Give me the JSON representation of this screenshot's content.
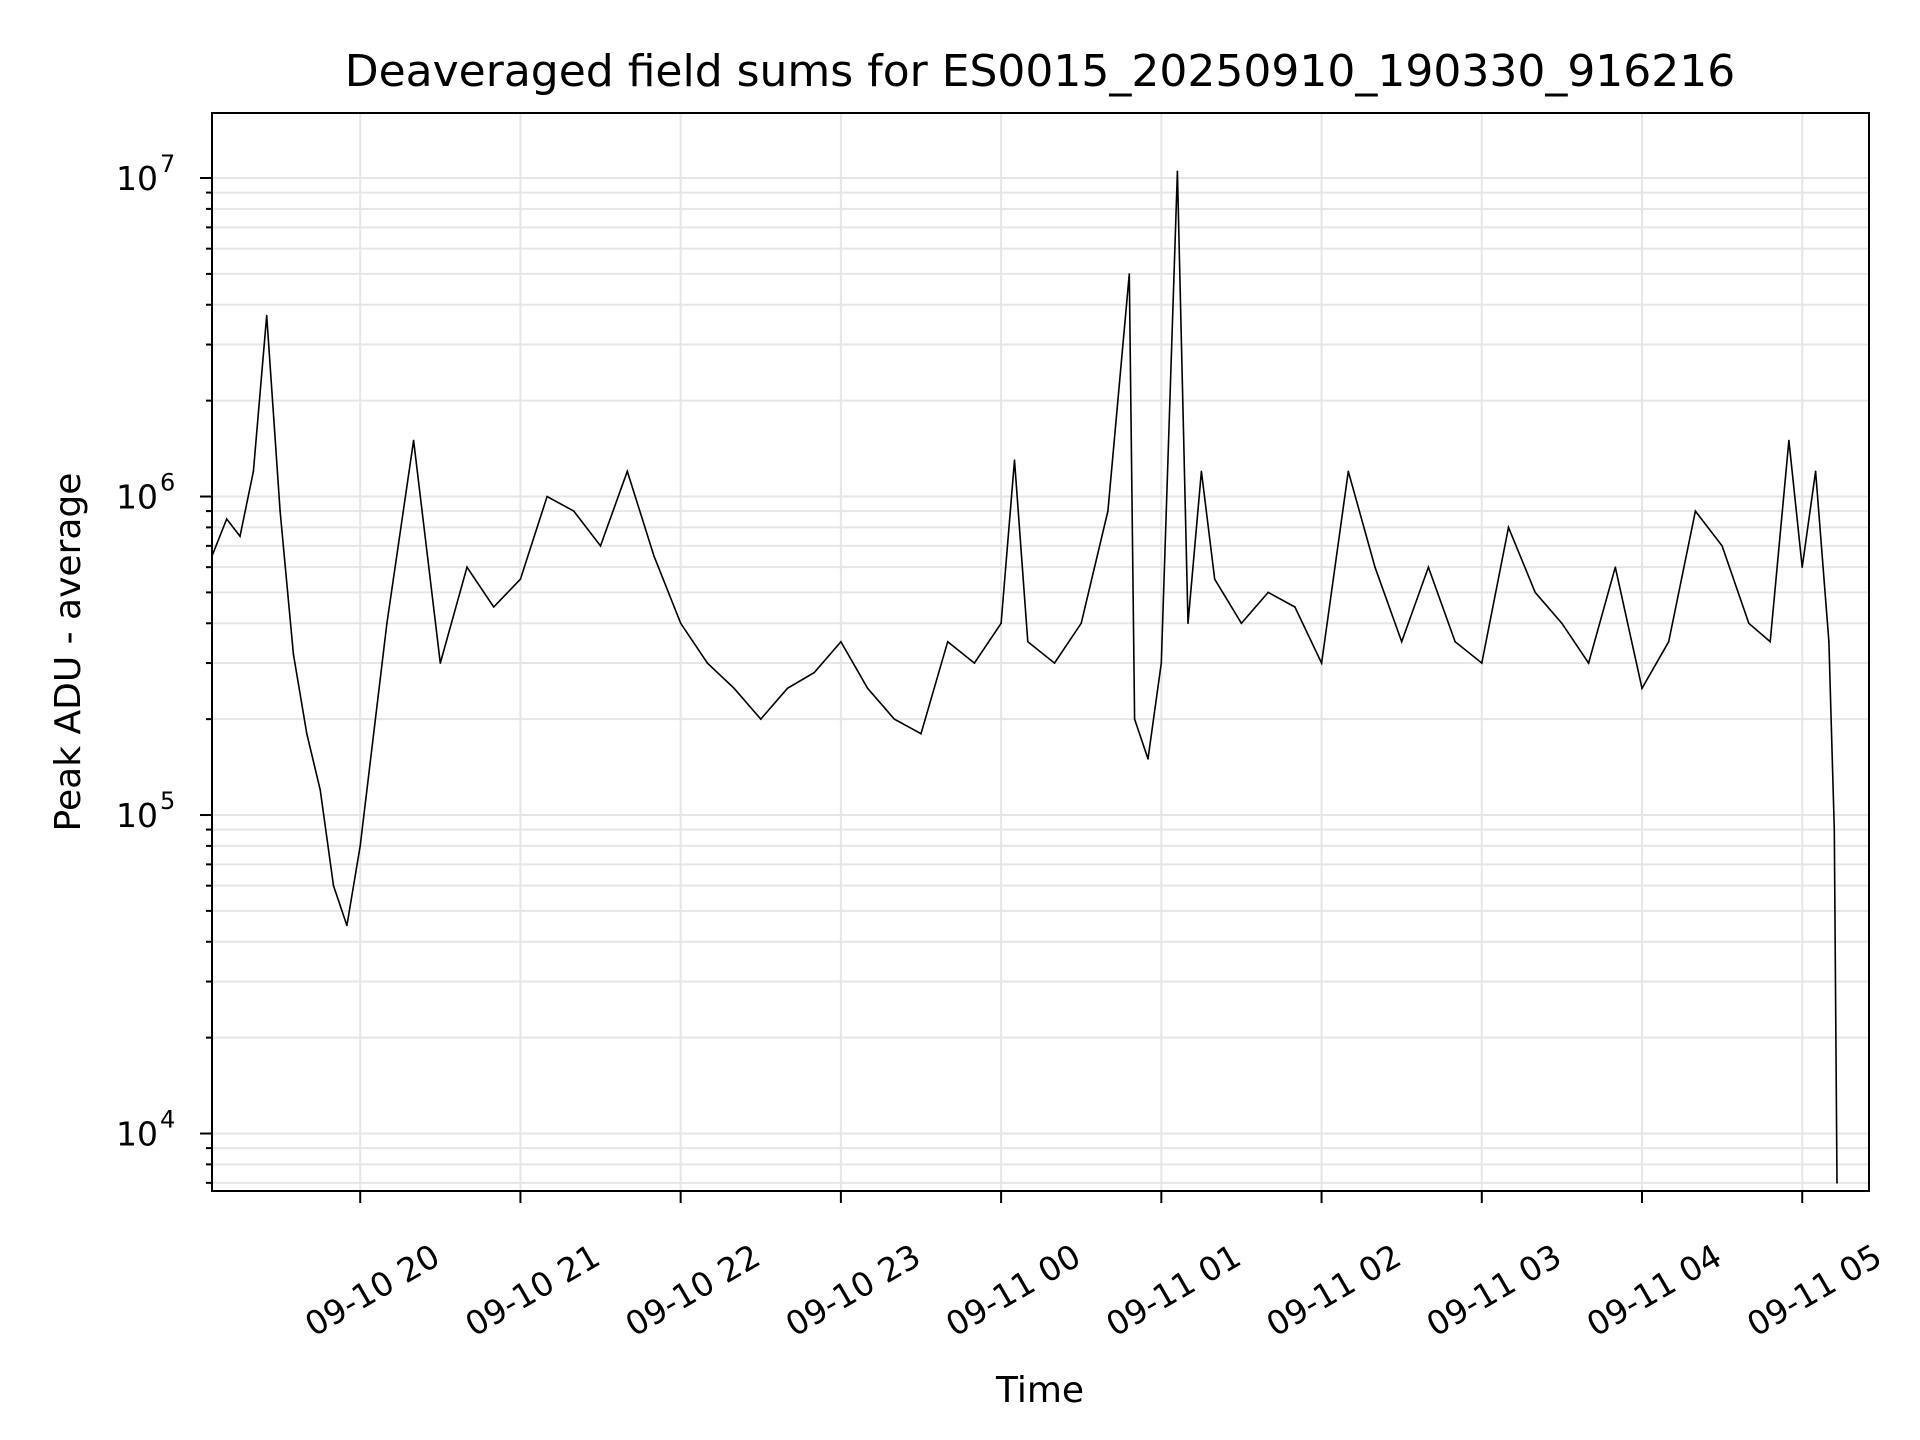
{
  "chart_data": {
    "type": "line",
    "title": "Deaveraged field sums for ES0015_20250910_190330_916216",
    "xlabel": "Time",
    "ylabel": "Peak ADU - average",
    "yscale": "log",
    "ylim": [
      6600,
      16000000
    ],
    "xlim": [
      "2025-09-10 19:04:30",
      "2025-09-11 05:25:00"
    ],
    "grid": true,
    "x_ticks": [
      {
        "value": "2025-09-10 20:00",
        "label": "09-10 20"
      },
      {
        "value": "2025-09-10 21:00",
        "label": "09-10 21"
      },
      {
        "value": "2025-09-10 22:00",
        "label": "09-10 22"
      },
      {
        "value": "2025-09-10 23:00",
        "label": "09-10 23"
      },
      {
        "value": "2025-09-11 00:00",
        "label": "09-11 00"
      },
      {
        "value": "2025-09-11 01:00",
        "label": "09-11 01"
      },
      {
        "value": "2025-09-11 02:00",
        "label": "09-11 02"
      },
      {
        "value": "2025-09-11 03:00",
        "label": "09-11 03"
      },
      {
        "value": "2025-09-11 04:00",
        "label": "09-11 04"
      },
      {
        "value": "2025-09-11 05:00",
        "label": "09-11 05"
      }
    ],
    "y_ticks": [
      {
        "value": 10000,
        "base": "10",
        "exp": "4"
      },
      {
        "value": 100000,
        "base": "10",
        "exp": "5"
      },
      {
        "value": 1000000,
        "base": "10",
        "exp": "6"
      },
      {
        "value": 10000000,
        "base": "10",
        "exp": "7"
      }
    ],
    "series": [
      {
        "color": "#000000",
        "x": [
          "2025-09-10 19:04:30",
          "2025-09-10 19:10",
          "2025-09-10 19:15",
          "2025-09-10 19:20",
          "2025-09-10 19:25",
          "2025-09-10 19:30",
          "2025-09-10 19:35",
          "2025-09-10 19:40",
          "2025-09-10 19:45",
          "2025-09-10 19:50",
          "2025-09-10 19:55",
          "2025-09-10 20:00",
          "2025-09-10 20:10",
          "2025-09-10 20:20",
          "2025-09-10 20:30",
          "2025-09-10 20:40",
          "2025-09-10 20:50",
          "2025-09-10 21:00",
          "2025-09-10 21:10",
          "2025-09-10 21:20",
          "2025-09-10 21:30",
          "2025-09-10 21:40",
          "2025-09-10 21:50",
          "2025-09-10 22:00",
          "2025-09-10 22:10",
          "2025-09-10 22:20",
          "2025-09-10 22:30",
          "2025-09-10 22:40",
          "2025-09-10 22:50",
          "2025-09-10 23:00",
          "2025-09-10 23:10",
          "2025-09-10 23:20",
          "2025-09-10 23:30",
          "2025-09-10 23:40",
          "2025-09-10 23:50",
          "2025-09-11 00:00",
          "2025-09-11 00:05",
          "2025-09-11 00:10",
          "2025-09-11 00:20",
          "2025-09-11 00:30",
          "2025-09-11 00:40",
          "2025-09-11 00:48",
          "2025-09-11 00:50",
          "2025-09-11 00:55",
          "2025-09-11 01:00",
          "2025-09-11 01:06",
          "2025-09-11 01:10",
          "2025-09-11 01:15",
          "2025-09-11 01:20",
          "2025-09-11 01:30",
          "2025-09-11 01:40",
          "2025-09-11 01:50",
          "2025-09-11 02:00",
          "2025-09-11 02:10",
          "2025-09-11 02:20",
          "2025-09-11 02:30",
          "2025-09-11 02:40",
          "2025-09-11 02:50",
          "2025-09-11 03:00",
          "2025-09-11 03:10",
          "2025-09-11 03:20",
          "2025-09-11 03:30",
          "2025-09-11 03:40",
          "2025-09-11 03:50",
          "2025-09-11 04:00",
          "2025-09-11 04:10",
          "2025-09-11 04:20",
          "2025-09-11 04:30",
          "2025-09-11 04:40",
          "2025-09-11 04:48",
          "2025-09-11 04:55",
          "2025-09-11 05:00",
          "2025-09-11 05:05",
          "2025-09-11 05:10",
          "2025-09-11 05:12",
          "2025-09-11 05:13"
        ],
        "y": [
          650000,
          850000,
          750000,
          1200000,
          3700000,
          900000,
          320000,
          180000,
          120000,
          60000,
          45000,
          80000,
          400000,
          1500000,
          300000,
          600000,
          450000,
          550000,
          1000000,
          900000,
          700000,
          1200000,
          650000,
          400000,
          300000,
          250000,
          200000,
          250000,
          280000,
          350000,
          250000,
          200000,
          180000,
          350000,
          300000,
          400000,
          1300000,
          350000,
          300000,
          400000,
          900000,
          5000000,
          200000,
          150000,
          300000,
          10500000,
          400000,
          1200000,
          550000,
          400000,
          500000,
          450000,
          300000,
          1200000,
          600000,
          350000,
          600000,
          350000,
          300000,
          800000,
          500000,
          400000,
          300000,
          600000,
          250000,
          350000,
          900000,
          700000,
          400000,
          350000,
          1500000,
          600000,
          1200000,
          350000,
          90000,
          7000
        ]
      }
    ]
  }
}
